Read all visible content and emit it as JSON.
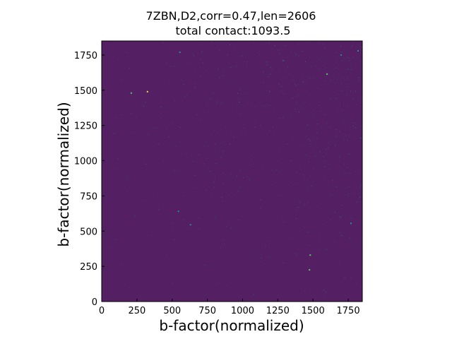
{
  "chart_data": {
    "type": "heatmap",
    "title_lines": [
      "7ZBN,D2,corr=0.47,len=2606",
      "total contact:1093.5"
    ],
    "xlabel": "b-factor(normalized)",
    "ylabel": "b-factor(normalized)",
    "xlim": [
      0,
      1850
    ],
    "ylim": [
      0,
      1850
    ],
    "xticks": [
      0,
      250,
      500,
      750,
      1000,
      1250,
      1500,
      1750
    ],
    "yticks": [
      0,
      250,
      500,
      750,
      1000,
      1250,
      1500,
      1750
    ],
    "xtick_labels": [
      "0",
      "250",
      "500",
      "750",
      "1000",
      "1250",
      "1500",
      "1750"
    ],
    "ytick_labels": [
      "0",
      "250",
      "500",
      "750",
      "1000",
      "1250",
      "1500",
      "1750"
    ],
    "colormap": "viridis",
    "background_color": "#541f63",
    "grid": false,
    "legend": "none",
    "bright_contacts": [
      {
        "x": 210,
        "y": 1480,
        "v": 0.9
      },
      {
        "x": 325,
        "y": 1490,
        "v": 1.0
      },
      {
        "x": 1600,
        "y": 1615,
        "v": 0.95
      },
      {
        "x": 1480,
        "y": 330,
        "v": 0.85
      },
      {
        "x": 1475,
        "y": 225,
        "v": 0.9
      },
      {
        "x": 545,
        "y": 640,
        "v": 0.55
      },
      {
        "x": 630,
        "y": 545,
        "v": 0.55
      },
      {
        "x": 1770,
        "y": 555,
        "v": 0.6
      },
      {
        "x": 555,
        "y": 1770,
        "v": 0.5
      },
      {
        "x": 1820,
        "y": 1780,
        "v": 0.6
      },
      {
        "x": 1700,
        "y": 1750,
        "v": 0.5
      },
      {
        "x": 1290,
        "y": 1710,
        "v": 0.45
      }
    ]
  }
}
